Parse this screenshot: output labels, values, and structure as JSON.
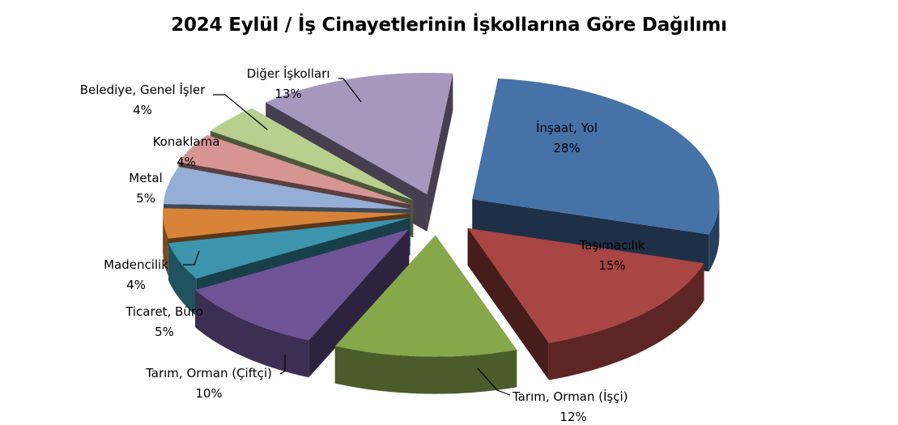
{
  "chart_data": {
    "type": "pie",
    "title": "2024 Eylül / İş Cinayetlerinin İşkollarına Göre Dağılımı",
    "slices": [
      {
        "name": "İnşaat, Yol",
        "pct_label": "28%",
        "value": 28,
        "color": "#4672a8"
      },
      {
        "name": "Taşımacılık",
        "pct_label": "15%",
        "value": 15,
        "color": "#a94542"
      },
      {
        "name": "Tarım, Orman (İşçi)",
        "pct_label": "12%",
        "value": 12,
        "color": "#87a74b"
      },
      {
        "name": "Tarım, Orman (Çiftçi)",
        "pct_label": "10%",
        "value": 10,
        "color": "#6e5396"
      },
      {
        "name": "Ticaret, Büro",
        "pct_label": "5%",
        "value": 5,
        "color": "#3c95ad"
      },
      {
        "name": "Madencilik",
        "pct_label": "4%",
        "value": 4,
        "color": "#d88438"
      },
      {
        "name": "Metal",
        "pct_label": "5%",
        "value": 5,
        "color": "#94aed6"
      },
      {
        "name": "Konaklama",
        "pct_label": "4%",
        "value": 4,
        "color": "#d69593"
      },
      {
        "name": "Belediye, Genel İşler",
        "pct_label": "4%",
        "value": 4,
        "color": "#b8cf8e"
      },
      {
        "name": "Diğer İşkolları",
        "pct_label": "13%",
        "value": 13,
        "color": "#a597be"
      }
    ],
    "style": "3d-exploded"
  }
}
